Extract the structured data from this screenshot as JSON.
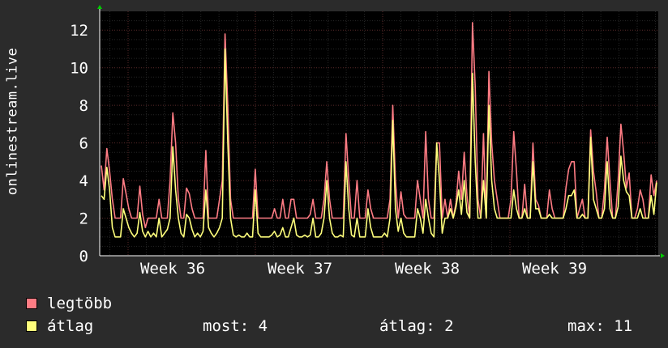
{
  "chart_data": {
    "type": "line",
    "ylabel": "onlinestream.live",
    "ylim": [
      0,
      13
    ],
    "yticks": [
      0,
      2,
      4,
      6,
      8,
      10,
      12
    ],
    "x_tick_labels": [
      "Week 36",
      "Week 37",
      "Week 38",
      "Week 39"
    ],
    "grid": true,
    "colors": {
      "background": "#2b2b2b",
      "plot": "#000000",
      "max_series": "#ff7c84",
      "avg_series": "#ffff7c",
      "grid": "#3a3a3a",
      "axis": "#ffffff",
      "arrow": "#00cc00"
    },
    "series": [
      {
        "name": "legtöbb",
        "values": [
          4.8,
          3.5,
          5.7,
          4.5,
          3,
          2,
          2,
          2,
          4.1,
          3.3,
          2.5,
          2,
          2,
          2,
          3.7,
          2.2,
          1.5,
          2,
          2,
          2,
          2,
          3,
          2,
          2,
          2,
          4,
          7.6,
          6,
          3,
          2,
          2,
          3.6,
          3.3,
          2.5,
          2,
          2,
          2,
          2,
          5.6,
          2,
          2,
          2,
          2,
          3,
          4,
          11.8,
          8,
          3,
          2,
          2,
          2,
          2,
          2,
          2,
          2,
          2,
          4.6,
          2,
          2,
          2,
          2,
          2,
          2,
          2.5,
          2,
          2,
          3,
          2,
          2,
          3,
          3,
          2,
          2,
          2,
          2,
          2,
          2.2,
          3,
          2,
          2,
          2,
          3,
          5,
          3,
          2,
          2,
          2,
          2,
          2,
          6.5,
          4,
          2,
          2,
          4,
          2,
          2,
          2,
          3.5,
          2.5,
          2,
          2,
          2,
          2,
          2,
          2,
          3,
          8,
          4,
          2,
          3.4,
          2.2,
          2,
          2,
          2,
          2,
          4,
          3,
          2,
          6.6,
          3,
          2,
          2,
          6,
          6,
          2,
          3,
          2,
          3,
          2,
          2.8,
          4.5,
          3,
          5.5,
          3.2,
          2,
          12.4,
          9,
          3,
          2,
          6.5,
          2,
          9.8,
          6,
          4,
          3,
          2,
          2,
          2,
          2,
          3,
          6.6,
          4.5,
          2,
          2,
          3.8,
          2,
          2,
          6,
          3,
          2.7,
          2,
          2,
          2,
          3.5,
          2.5,
          2,
          2,
          2,
          2,
          3.6,
          4.6,
          5,
          5,
          2,
          2.5,
          3,
          2,
          2,
          6.7,
          4.5,
          3.4,
          2,
          2,
          3.5,
          6.3,
          4,
          2,
          2,
          4,
          7,
          5.5,
          3.6,
          4.4,
          2,
          2,
          2.5,
          3.5,
          3,
          2,
          2,
          4.3,
          3.2,
          4
        ],
        "now": 4
      },
      {
        "name": "átlag",
        "values": [
          3.2,
          3,
          4.7,
          3.5,
          1.5,
          1,
          1,
          1,
          2.5,
          2,
          1.5,
          1.2,
          1,
          1.2,
          2.3,
          1.3,
          1,
          1.3,
          1,
          1.2,
          1,
          2,
          1,
          1.2,
          1.4,
          2,
          5.8,
          3.5,
          2,
          1.2,
          1,
          2.2,
          2,
          1.4,
          1,
          1.2,
          1,
          1.3,
          3.5,
          1.5,
          1.2,
          1,
          1.2,
          1.5,
          2,
          11,
          6,
          2,
          1.1,
          1,
          1.1,
          1,
          1,
          1.2,
          1,
          1,
          3.5,
          1.2,
          1,
          1,
          1,
          1,
          1.1,
          1.3,
          1,
          1.1,
          1.5,
          1,
          1,
          1.5,
          2,
          1.1,
          1,
          1,
          1.1,
          1,
          1.1,
          2,
          1,
          1,
          1.2,
          2,
          4,
          2,
          1.2,
          1,
          1,
          1.1,
          1,
          5,
          2.5,
          1.1,
          1,
          2,
          1,
          1,
          1,
          2.5,
          1.5,
          1,
          1,
          1,
          1,
          1.2,
          1,
          2,
          7.2,
          2.5,
          1.3,
          2,
          1.2,
          1,
          1,
          1,
          1,
          2.5,
          2,
          1.2,
          3,
          2,
          1.2,
          1,
          6,
          4,
          1.2,
          2,
          2,
          2.5,
          2,
          2.6,
          3.5,
          2.2,
          4,
          2.3,
          2,
          9.7,
          5,
          2,
          2,
          4,
          2,
          8,
          4,
          2.5,
          2,
          2,
          2,
          2,
          2,
          2,
          3.5,
          2.5,
          2,
          2,
          2.5,
          2,
          2,
          5,
          2.5,
          2.5,
          2,
          2,
          2,
          2.2,
          2,
          2,
          2,
          2,
          2,
          2.5,
          3.2,
          3.2,
          3.5,
          2,
          2,
          2.2,
          2,
          2,
          6.3,
          3,
          2.5,
          2,
          2,
          2.5,
          5,
          2.5,
          2,
          2,
          2.6,
          5.3,
          4,
          3.4,
          3.2,
          2,
          2,
          2,
          2.5,
          2,
          2,
          2,
          3.2,
          2.2,
          3.9
        ],
        "now": 2
      }
    ]
  },
  "legend": [
    {
      "label": "legtöbb",
      "color": "#ff7c84"
    },
    {
      "label": "átlag",
      "color": "#ffff7c"
    }
  ],
  "stats": {
    "now": "most: 4",
    "avg": "átlag: 2",
    "max": "max: 11"
  }
}
